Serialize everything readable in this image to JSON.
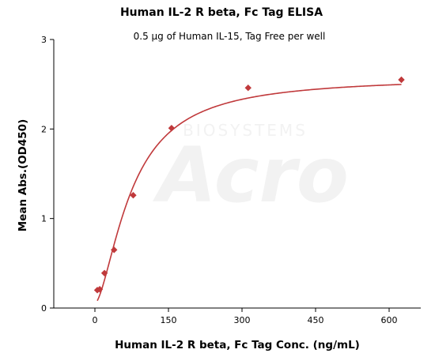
{
  "watermark": {
    "brand": "Acro",
    "tagline": "BIOSYSTEMS"
  },
  "chart_data": {
    "type": "scatter",
    "title": "Human IL-2 R beta, Fc Tag ELISA",
    "subtitle": "0.5 μg of Human IL-15, Tag Free per well",
    "xlabel": "Human IL-2 R beta, Fc Tag Conc. (ng/mL)",
    "ylabel": "Mean Abs.(OD450)",
    "xlim": [
      -80,
      670
    ],
    "ylim": [
      0,
      3
    ],
    "xticks": [
      0,
      150,
      300,
      450,
      600
    ],
    "yticks": [
      0,
      1,
      2,
      3
    ],
    "grid": false,
    "color": "#c0393b",
    "series": [
      {
        "points": [
          {
            "x": 4.9,
            "y": 0.2
          },
          {
            "x": 9.8,
            "y": 0.21
          },
          {
            "x": 19.5,
            "y": 0.39
          },
          {
            "x": 39.1,
            "y": 0.65
          },
          {
            "x": 78.1,
            "y": 1.26
          },
          {
            "x": 156.3,
            "y": 2.01
          },
          {
            "x": 312.5,
            "y": 2.46
          },
          {
            "x": 625,
            "y": 2.55
          }
        ],
        "fit": {
          "model": "4PL",
          "bottom": 0.05,
          "top": 2.58,
          "ec50": 75,
          "hill": 1.6
        }
      }
    ]
  }
}
